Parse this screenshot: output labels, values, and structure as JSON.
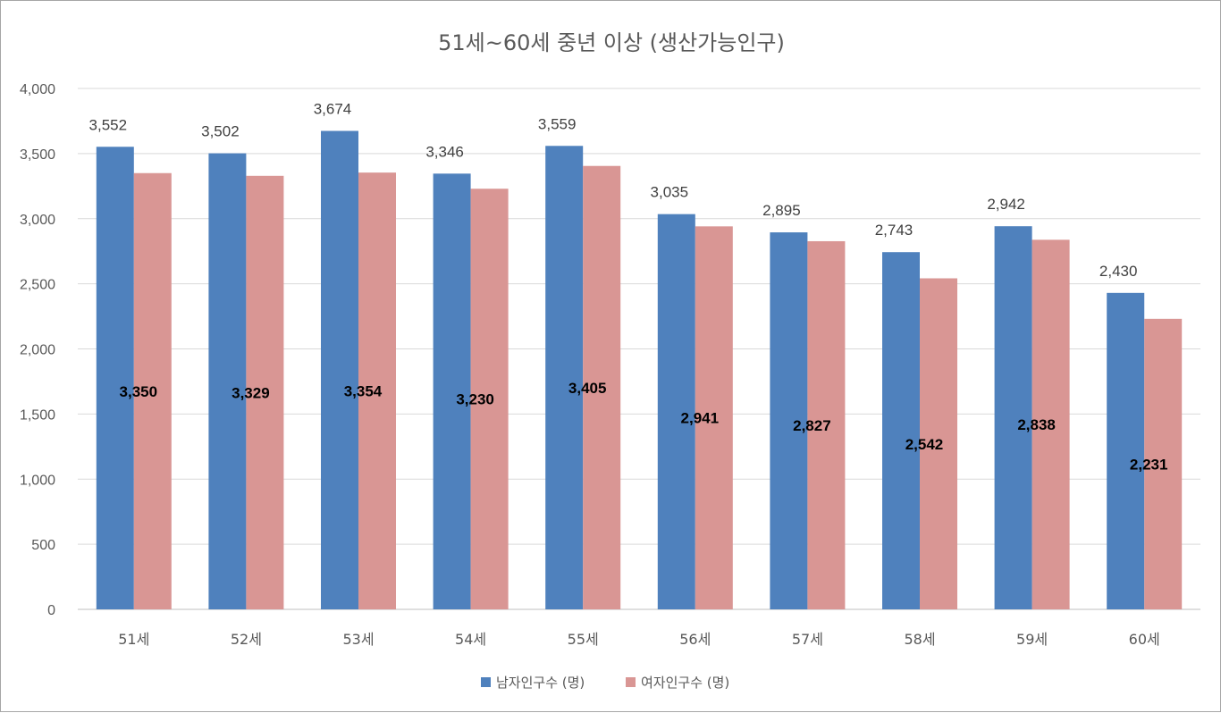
{
  "chart_data": {
    "type": "bar",
    "title": "51세~60세 중년 이상 (생산가능인구)",
    "categories": [
      "51세",
      "52세",
      "53세",
      "54세",
      "55세",
      "56세",
      "57세",
      "58세",
      "59세",
      "60세"
    ],
    "series": [
      {
        "name": "남자인구수 (명)",
        "values": [
          3552,
          3502,
          3674,
          3346,
          3559,
          3035,
          2895,
          2743,
          2942,
          2430
        ],
        "labels": [
          "3,552",
          "3,502",
          "3,674",
          "3,346",
          "3,559",
          "3,035",
          "2,895",
          "2,743",
          "2,942",
          "2,430"
        ],
        "color": "#4f81bd"
      },
      {
        "name": "여자인구수 (명)",
        "values": [
          3350,
          3329,
          3354,
          3230,
          3405,
          2941,
          2827,
          2542,
          2838,
          2231
        ],
        "labels": [
          "3,350",
          "3,329",
          "3,354",
          "3,230",
          "3,405",
          "2,941",
          "2,827",
          "2,542",
          "2,838",
          "2,231"
        ],
        "color": "#d99694"
      }
    ],
    "ylim": [
      0,
      4000
    ],
    "yticks": [
      0,
      500,
      1000,
      1500,
      2000,
      2500,
      3000,
      3500,
      4000
    ],
    "ytick_labels": [
      "0",
      "500",
      "1,000",
      "1,500",
      "2,000",
      "2,500",
      "3,000",
      "3,500",
      "4,000"
    ],
    "xlabel": "",
    "ylabel": "",
    "grid": true,
    "legend": "bottom"
  }
}
